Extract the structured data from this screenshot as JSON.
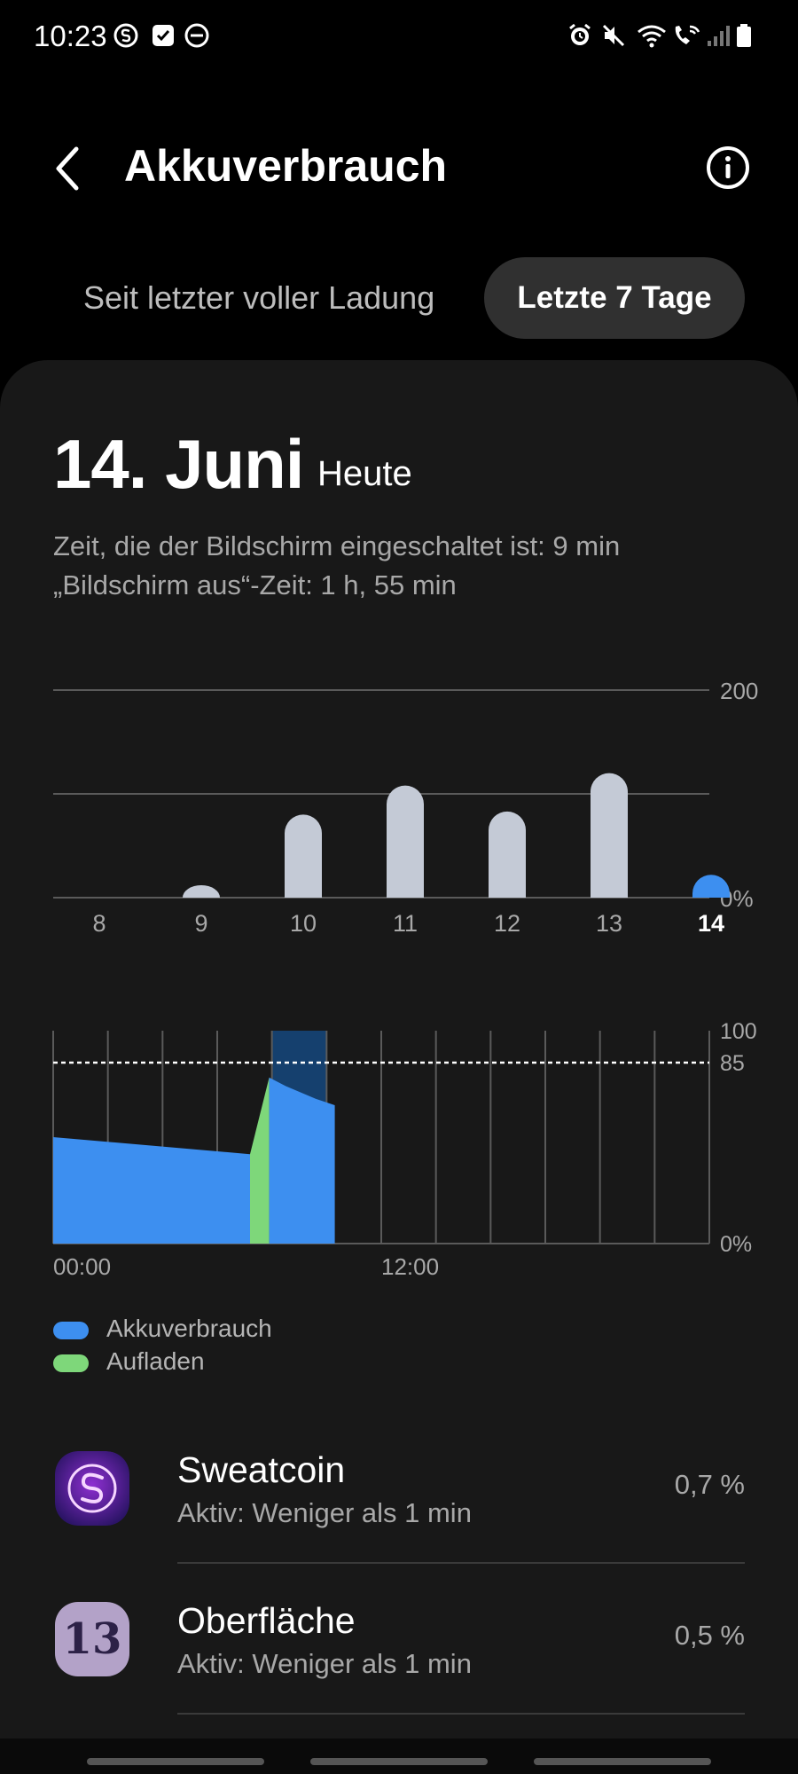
{
  "status_bar": {
    "time": "10:23",
    "left_icons": [
      "sweatcoin-icon",
      "checkbox-icon",
      "dnd-icon"
    ],
    "right_icons": [
      "alarm-icon",
      "mute-icon",
      "wifi-icon",
      "wifi-call-icon",
      "signal-icon",
      "battery-icon"
    ]
  },
  "header": {
    "title": "Akkuverbrauch"
  },
  "tabs": [
    {
      "label": "Seit letzter voller Ladung",
      "selected": false
    },
    {
      "label": "Letzte 7 Tage",
      "selected": true
    }
  ],
  "summary": {
    "date": "14. Juni",
    "date_suffix": "Heute",
    "screen_on": "Zeit, die der Bildschirm eingeschaltet ist: 9 min",
    "screen_off": "„Bildschirm aus“-Zeit: 1 h, 55 min"
  },
  "chart_data": [
    {
      "type": "bar",
      "categories": [
        "8",
        "9",
        "10",
        "11",
        "12",
        "13",
        "14"
      ],
      "values": [
        0,
        12,
        80,
        108,
        83,
        120,
        22
      ],
      "selected_category": "14",
      "ylim": [
        0,
        200
      ],
      "ytick_labels": [
        "200",
        "0%"
      ],
      "colors": {
        "bar": "#c4cad6",
        "selected": "#3d8ff0",
        "grid": "#5a5a5a"
      }
    },
    {
      "type": "area",
      "x_tick_labels": [
        "00:00",
        "12:00"
      ],
      "ytick_labels": [
        "100",
        "85",
        "0%"
      ],
      "ylim": [
        0,
        100
      ],
      "xlim": [
        0,
        24
      ],
      "threshold": 85,
      "highlight_range": [
        8,
        10
      ],
      "series": [
        {
          "name": "Akkuverbrauch",
          "points": [
            [
              0,
              50
            ],
            [
              7.2,
              42
            ],
            [
              7.2,
              0
            ],
            [
              0,
              0
            ]
          ],
          "color": "#3d8ff0"
        },
        {
          "name": "Aufladen",
          "points": [
            [
              7.2,
              42
            ],
            [
              7.9,
              78
            ],
            [
              7.9,
              0
            ],
            [
              7.2,
              0
            ]
          ],
          "color": "#7ed77a"
        },
        {
          "name": "Akkuverbrauch",
          "points": [
            [
              7.9,
              78
            ],
            [
              8.5,
              74
            ],
            [
              9.6,
              68
            ],
            [
              10.3,
              65
            ],
            [
              10.3,
              0
            ],
            [
              7.9,
              0
            ]
          ],
          "color": "#3d8ff0"
        }
      ],
      "colors": {
        "highlight": "#15406e",
        "grid": "#5a5a5a",
        "threshold": "#ffffff"
      }
    }
  ],
  "legend": [
    {
      "label": "Akkuverbrauch",
      "color": "#3d8ff0"
    },
    {
      "label": "Aufladen",
      "color": "#7ed77a"
    }
  ],
  "apps": [
    {
      "name": "Sweatcoin",
      "sub": "Aktiv: Weniger als 1 min",
      "value": "0,7 %",
      "icon": "sweatcoin-app-icon"
    },
    {
      "name": "Oberfläche",
      "sub": "Aktiv: Weniger als 1 min",
      "value": "0,5 %",
      "icon": "one-ui-app-icon",
      "icon_text": "13"
    }
  ]
}
